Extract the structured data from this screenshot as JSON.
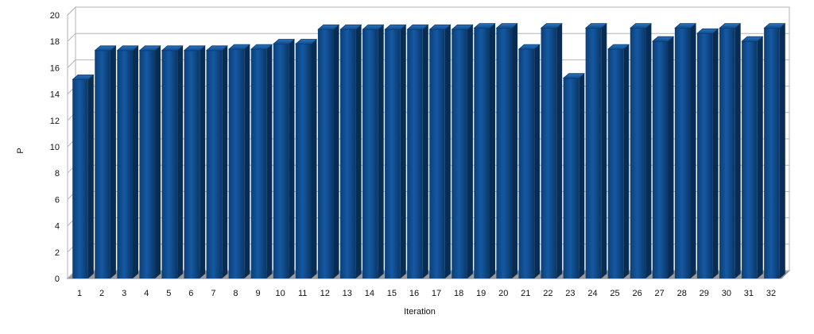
{
  "chart_data": {
    "type": "bar",
    "xlabel": "Iteration",
    "ylabel": "P",
    "ylim": [
      0,
      20
    ],
    "y_ticks": [
      0,
      2,
      4,
      6,
      8,
      10,
      12,
      14,
      16,
      18,
      20
    ],
    "grid": true,
    "categories": [
      "1",
      "2",
      "3",
      "4",
      "5",
      "6",
      "7",
      "8",
      "9",
      "10",
      "11",
      "12",
      "13",
      "14",
      "15",
      "16",
      "17",
      "18",
      "19",
      "20",
      "21",
      "22",
      "23",
      "24",
      "25",
      "26",
      "27",
      "28",
      "29",
      "30",
      "31",
      "32"
    ],
    "values": [
      15.1,
      17.3,
      17.3,
      17.3,
      17.3,
      17.3,
      17.3,
      17.4,
      17.4,
      17.8,
      17.8,
      18.9,
      18.9,
      18.9,
      18.9,
      18.9,
      18.9,
      18.9,
      19.0,
      19.0,
      17.4,
      19.0,
      15.2,
      19.0,
      17.4,
      19.0,
      18.0,
      19.0,
      18.6,
      19.0,
      18.0,
      19.0
    ],
    "bar_color": "#0f4c8c"
  }
}
